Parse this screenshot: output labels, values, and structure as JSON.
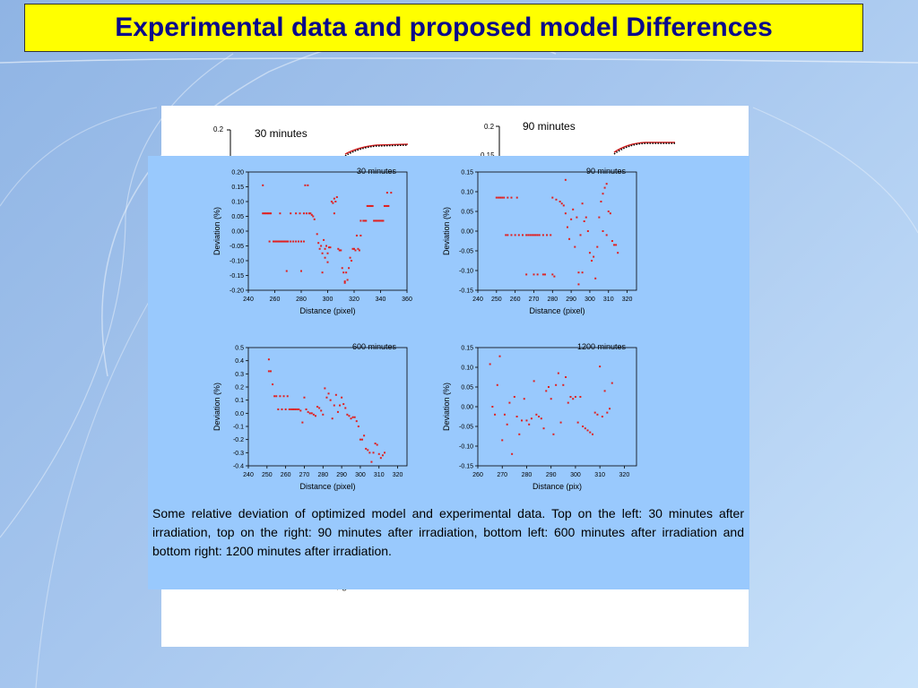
{
  "slide": {
    "title": "Experimental data and proposed model Differences",
    "caption": "Some relative deviation of optimized model and experimental data. Top on the left: 30 minutes after irradiation, top on the right:  90 minutes after irradiation, bottom left: 600 minutes after irradiation and bottom right: 1200 minutes after irradiation.",
    "partially_hidden_text": ", g"
  },
  "colors": {
    "title_bg": "#ffff00",
    "title_text": "#0a0a8a",
    "overlay_bg": "#99c9fd",
    "points": "#e02020",
    "background_start": "#8fb4e4",
    "background_end": "#c9e2fa"
  },
  "background_plots": [
    {
      "label": "30 minutes",
      "y_tick_top": "0.2",
      "y_tick_second": ""
    },
    {
      "label": "90 minutes",
      "y_tick_top": "0.2",
      "y_tick_second": "0.15"
    }
  ],
  "chart_data": [
    {
      "type": "scatter",
      "title": "30 minutes",
      "xlabel": "Distance (pixel)",
      "ylabel": "Deviation (%)",
      "xlim": [
        240,
        360
      ],
      "ylim": [
        -0.2,
        0.2
      ],
      "xticks": [
        240,
        260,
        280,
        300,
        320,
        340,
        360
      ],
      "yticks": [
        -0.2,
        -0.15,
        -0.1,
        -0.05,
        0.0,
        0.05,
        0.1,
        0.15,
        0.2
      ],
      "tick_decimals": 2,
      "grid": false,
      "points": [
        [
          251,
          0.155
        ],
        [
          251,
          0.06
        ],
        [
          252,
          0.06
        ],
        [
          253,
          0.06
        ],
        [
          254,
          0.06
        ],
        [
          255,
          0.06
        ],
        [
          256,
          0.06
        ],
        [
          257,
          0.06
        ],
        [
          256,
          -0.035
        ],
        [
          259,
          -0.035
        ],
        [
          260,
          -0.035
        ],
        [
          261,
          -0.035
        ],
        [
          262,
          -0.035
        ],
        [
          263,
          -0.035
        ],
        [
          264,
          -0.035
        ],
        [
          265,
          -0.035
        ],
        [
          266,
          -0.035
        ],
        [
          267,
          -0.035
        ],
        [
          268,
          -0.035
        ],
        [
          269,
          -0.035
        ],
        [
          270,
          -0.035
        ],
        [
          272,
          -0.035
        ],
        [
          274,
          -0.035
        ],
        [
          276,
          -0.035
        ],
        [
          278,
          -0.035
        ],
        [
          280,
          -0.035
        ],
        [
          282,
          -0.035
        ],
        [
          264,
          0.06
        ],
        [
          272,
          0.06
        ],
        [
          276,
          0.06
        ],
        [
          279,
          0.06
        ],
        [
          282,
          0.06
        ],
        [
          284,
          0.06
        ],
        [
          286,
          0.06
        ],
        [
          287,
          0.06
        ],
        [
          288,
          0.055
        ],
        [
          289,
          0.05
        ],
        [
          290,
          0.04
        ],
        [
          269,
          -0.135
        ],
        [
          280,
          -0.135
        ],
        [
          283,
          0.155
        ],
        [
          285,
          0.155
        ],
        [
          292,
          -0.01
        ],
        [
          293,
          -0.04
        ],
        [
          294,
          -0.06
        ],
        [
          295,
          -0.05
        ],
        [
          296,
          -0.075
        ],
        [
          296,
          -0.14
        ],
        [
          297,
          -0.03
        ],
        [
          298,
          -0.09
        ],
        [
          298,
          -0.06
        ],
        [
          299,
          -0.05
        ],
        [
          300,
          -0.105
        ],
        [
          300,
          -0.075
        ],
        [
          301,
          -0.055
        ],
        [
          302,
          -0.055
        ],
        [
          303,
          0.1
        ],
        [
          304,
          0.095
        ],
        [
          305,
          0.11
        ],
        [
          305,
          0.06
        ],
        [
          306,
          0.1
        ],
        [
          307,
          0.115
        ],
        [
          308,
          -0.06
        ],
        [
          309,
          -0.065
        ],
        [
          310,
          -0.065
        ],
        [
          311,
          -0.125
        ],
        [
          312,
          -0.14
        ],
        [
          313,
          -0.175
        ],
        [
          313,
          -0.17
        ],
        [
          314,
          -0.14
        ],
        [
          315,
          -0.165
        ],
        [
          316,
          -0.125
        ],
        [
          317,
          -0.09
        ],
        [
          318,
          -0.1
        ],
        [
          319,
          -0.06
        ],
        [
          320,
          -0.06
        ],
        [
          321,
          -0.065
        ],
        [
          322,
          -0.015
        ],
        [
          323,
          -0.06
        ],
        [
          324,
          -0.065
        ],
        [
          325,
          -0.015
        ],
        [
          325,
          0.035
        ],
        [
          327,
          0.035
        ],
        [
          328,
          0.035
        ],
        [
          329,
          0.035
        ],
        [
          330,
          0.085
        ],
        [
          331,
          0.085
        ],
        [
          332,
          0.085
        ],
        [
          333,
          0.085
        ],
        [
          334,
          0.085
        ],
        [
          335,
          0.035
        ],
        [
          336,
          0.035
        ],
        [
          337,
          0.035
        ],
        [
          338,
          0.035
        ],
        [
          339,
          0.035
        ],
        [
          340,
          0.035
        ],
        [
          341,
          0.035
        ],
        [
          342,
          0.035
        ],
        [
          343,
          0.085
        ],
        [
          344,
          0.085
        ],
        [
          345,
          0.085
        ],
        [
          346,
          0.085
        ],
        [
          345,
          0.13
        ],
        [
          348,
          0.13
        ]
      ]
    },
    {
      "type": "scatter",
      "title": "90 minutes",
      "xlabel": "Distance (pixel)",
      "ylabel": "Deviation (%)",
      "xlim": [
        240,
        325
      ],
      "ylim": [
        -0.15,
        0.15
      ],
      "xticks": [
        240,
        250,
        260,
        270,
        280,
        290,
        300,
        310,
        320
      ],
      "yticks": [
        -0.15,
        -0.1,
        -0.05,
        0.0,
        0.05,
        0.1,
        0.15
      ],
      "tick_decimals": 2,
      "grid": false,
      "points": [
        [
          250,
          0.085
        ],
        [
          251,
          0.085
        ],
        [
          252,
          0.085
        ],
        [
          253,
          0.085
        ],
        [
          254,
          0.085
        ],
        [
          256,
          0.085
        ],
        [
          258,
          0.085
        ],
        [
          261,
          0.085
        ],
        [
          255,
          -0.01
        ],
        [
          256,
          -0.01
        ],
        [
          258,
          -0.01
        ],
        [
          260,
          -0.01
        ],
        [
          262,
          -0.01
        ],
        [
          264,
          -0.01
        ],
        [
          266,
          -0.01
        ],
        [
          267,
          -0.01
        ],
        [
          268,
          -0.01
        ],
        [
          269,
          -0.01
        ],
        [
          270,
          -0.01
        ],
        [
          271,
          -0.01
        ],
        [
          272,
          -0.01
        ],
        [
          273,
          -0.01
        ],
        [
          275,
          -0.01
        ],
        [
          277,
          -0.01
        ],
        [
          279,
          -0.01
        ],
        [
          266,
          -0.11
        ],
        [
          270,
          -0.11
        ],
        [
          272,
          -0.11
        ],
        [
          275,
          -0.11
        ],
        [
          276,
          -0.11
        ],
        [
          280,
          -0.11
        ],
        [
          281,
          -0.115
        ],
        [
          280,
          0.085
        ],
        [
          282,
          0.08
        ],
        [
          284,
          0.075
        ],
        [
          285,
          0.07
        ],
        [
          286,
          0.065
        ],
        [
          287,
          0.13
        ],
        [
          287,
          0.045
        ],
        [
          288,
          0.01
        ],
        [
          289,
          -0.02
        ],
        [
          290,
          0.03
        ],
        [
          291,
          0.055
        ],
        [
          292,
          -0.04
        ],
        [
          293,
          0.035
        ],
        [
          294,
          -0.105
        ],
        [
          294,
          -0.135
        ],
        [
          295,
          -0.01
        ],
        [
          296,
          0.07
        ],
        [
          296,
          -0.105
        ],
        [
          297,
          0.025
        ],
        [
          298,
          0.035
        ],
        [
          299,
          0.0
        ],
        [
          300,
          -0.055
        ],
        [
          301,
          -0.075
        ],
        [
          302,
          -0.065
        ],
        [
          303,
          -0.12
        ],
        [
          304,
          -0.04
        ],
        [
          305,
          0.035
        ],
        [
          306,
          0.075
        ],
        [
          307,
          0.0
        ],
        [
          307,
          0.095
        ],
        [
          308,
          0.11
        ],
        [
          309,
          -0.01
        ],
        [
          309,
          0.12
        ],
        [
          310,
          0.05
        ],
        [
          311,
          0.045
        ],
        [
          312,
          -0.025
        ],
        [
          313,
          -0.035
        ],
        [
          314,
          -0.035
        ],
        [
          315,
          -0.055
        ]
      ]
    },
    {
      "type": "scatter",
      "title": "600 minutes",
      "xlabel": "Distance (pixel)",
      "ylabel": "Deviation (%)",
      "xlim": [
        240,
        325
      ],
      "ylim": [
        -0.4,
        0.5
      ],
      "xticks": [
        240,
        250,
        260,
        270,
        280,
        290,
        300,
        310,
        320
      ],
      "yticks": [
        -0.4,
        -0.3,
        -0.2,
        -0.1,
        0.0,
        0.1,
        0.2,
        0.3,
        0.4,
        0.5
      ],
      "tick_decimals": 1,
      "grid": false,
      "points": [
        [
          251,
          0.41
        ],
        [
          251,
          0.32
        ],
        [
          252,
          0.32
        ],
        [
          253,
          0.22
        ],
        [
          254,
          0.13
        ],
        [
          255,
          0.13
        ],
        [
          256,
          0.03
        ],
        [
          257,
          0.13
        ],
        [
          258,
          0.03
        ],
        [
          259,
          0.13
        ],
        [
          260,
          0.03
        ],
        [
          261,
          0.13
        ],
        [
          262,
          0.03
        ],
        [
          263,
          0.03
        ],
        [
          264,
          0.03
        ],
        [
          265,
          0.03
        ],
        [
          266,
          0.03
        ],
        [
          267,
          0.03
        ],
        [
          268,
          0.02
        ],
        [
          269,
          -0.07
        ],
        [
          270,
          0.12
        ],
        [
          271,
          0.03
        ],
        [
          272,
          0.01
        ],
        [
          273,
          0.0
        ],
        [
          274,
          0.0
        ],
        [
          275,
          -0.01
        ],
        [
          276,
          -0.02
        ],
        [
          277,
          0.05
        ],
        [
          278,
          0.04
        ],
        [
          279,
          0.02
        ],
        [
          280,
          -0.01
        ],
        [
          281,
          0.19
        ],
        [
          282,
          0.12
        ],
        [
          283,
          0.15
        ],
        [
          284,
          0.1
        ],
        [
          285,
          -0.04
        ],
        [
          286,
          0.06
        ],
        [
          287,
          0.14
        ],
        [
          288,
          0.01
        ],
        [
          289,
          0.06
        ],
        [
          290,
          0.12
        ],
        [
          291,
          0.07
        ],
        [
          292,
          0.04
        ],
        [
          293,
          -0.01
        ],
        [
          294,
          -0.02
        ],
        [
          295,
          -0.04
        ],
        [
          296,
          -0.03
        ],
        [
          297,
          -0.03
        ],
        [
          298,
          -0.06
        ],
        [
          299,
          -0.1
        ],
        [
          300,
          -0.2
        ],
        [
          301,
          -0.2
        ],
        [
          302,
          -0.17
        ],
        [
          303,
          -0.27
        ],
        [
          304,
          -0.28
        ],
        [
          305,
          -0.3
        ],
        [
          307,
          -0.3
        ],
        [
          306,
          -0.37
        ],
        [
          308,
          -0.23
        ],
        [
          309,
          -0.24
        ],
        [
          310,
          -0.31
        ],
        [
          311,
          -0.34
        ],
        [
          312,
          -0.32
        ],
        [
          313,
          -0.3
        ]
      ]
    },
    {
      "type": "scatter",
      "title": "1200 minutes",
      "xlabel": "Distance (pix)",
      "ylabel": "Deviation (%)",
      "xlim": [
        260,
        325
      ],
      "ylim": [
        -0.15,
        0.15
      ],
      "xticks": [
        260,
        270,
        280,
        290,
        300,
        310,
        320
      ],
      "yticks": [
        -0.15,
        -0.1,
        -0.05,
        0.0,
        0.05,
        0.1,
        0.15
      ],
      "tick_decimals": 2,
      "grid": false,
      "points": [
        [
          265,
          0.108
        ],
        [
          266,
          0.0
        ],
        [
          267,
          -0.02
        ],
        [
          268,
          0.055
        ],
        [
          269,
          0.128
        ],
        [
          270,
          -0.085
        ],
        [
          271,
          -0.02
        ],
        [
          272,
          -0.045
        ],
        [
          273,
          0.01
        ],
        [
          274,
          -0.12
        ],
        [
          275,
          0.025
        ],
        [
          276,
          -0.025
        ],
        [
          277,
          -0.07
        ],
        [
          278,
          -0.035
        ],
        [
          279,
          0.02
        ],
        [
          280,
          -0.035
        ],
        [
          281,
          -0.045
        ],
        [
          282,
          -0.03
        ],
        [
          283,
          0.065
        ],
        [
          284,
          -0.02
        ],
        [
          285,
          -0.025
        ],
        [
          286,
          -0.03
        ],
        [
          287,
          -0.055
        ],
        [
          288,
          0.04
        ],
        [
          289,
          0.05
        ],
        [
          290,
          0.02
        ],
        [
          291,
          -0.07
        ],
        [
          292,
          0.055
        ],
        [
          293,
          0.085
        ],
        [
          294,
          -0.04
        ],
        [
          295,
          0.055
        ],
        [
          296,
          0.075
        ],
        [
          297,
          0.01
        ],
        [
          298,
          0.025
        ],
        [
          299,
          0.02
        ],
        [
          300,
          0.025
        ],
        [
          301,
          -0.04
        ],
        [
          302,
          0.025
        ],
        [
          303,
          -0.05
        ],
        [
          304,
          -0.055
        ],
        [
          305,
          -0.06
        ],
        [
          306,
          -0.065
        ],
        [
          307,
          -0.07
        ],
        [
          308,
          -0.015
        ],
        [
          309,
          -0.02
        ],
        [
          310,
          0.102
        ],
        [
          311,
          -0.025
        ],
        [
          312,
          0.04
        ],
        [
          313,
          -0.015
        ],
        [
          314,
          -0.005
        ],
        [
          315,
          0.06
        ]
      ]
    }
  ]
}
